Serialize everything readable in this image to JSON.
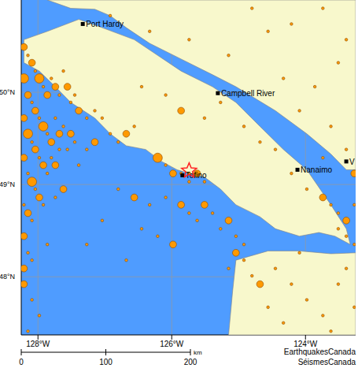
{
  "chart_data": {
    "type": "scatter",
    "xlim": [
      -128.25,
      -123.25
    ],
    "ylim": [
      47.37,
      51.0
    ],
    "xticks": [
      {
        "value": -128,
        "label": "128°W"
      },
      {
        "value": -126,
        "label": "126°W"
      },
      {
        "value": -124,
        "label": "124°W"
      }
    ],
    "yticks": [
      {
        "value": 48,
        "label": "48°N"
      },
      {
        "value": 49,
        "label": "49°N"
      },
      {
        "value": 50,
        "label": "50°N"
      }
    ],
    "grid": true,
    "ocean_color": "#4f9cff",
    "land_color": "#f8f8cc",
    "land": [
      [
        [
          -128.21,
          50.57
        ],
        [
          -127.86,
          50.66
        ],
        [
          -127.39,
          50.79
        ],
        [
          -127.04,
          50.7
        ],
        [
          -126.56,
          50.57
        ],
        [
          -126.21,
          50.4
        ],
        [
          -125.86,
          50.23
        ],
        [
          -125.39,
          50.06
        ],
        [
          -125.04,
          49.89
        ],
        [
          -124.68,
          49.63
        ],
        [
          -124.33,
          49.38
        ],
        [
          -123.98,
          49.16
        ],
        [
          -123.62,
          48.78
        ],
        [
          -123.39,
          48.52
        ],
        [
          -123.33,
          48.35
        ],
        [
          -123.56,
          48.44
        ],
        [
          -123.8,
          48.48
        ],
        [
          -124.09,
          48.44
        ],
        [
          -124.45,
          48.52
        ],
        [
          -124.68,
          48.65
        ],
        [
          -125.04,
          48.78
        ],
        [
          -125.27,
          48.95
        ],
        [
          -125.51,
          49.08
        ],
        [
          -125.74,
          49.12
        ],
        [
          -125.92,
          49.16
        ],
        [
          -126.15,
          49.25
        ],
        [
          -126.39,
          49.38
        ],
        [
          -126.68,
          49.42
        ],
        [
          -126.92,
          49.55
        ],
        [
          -127.15,
          49.72
        ],
        [
          -127.51,
          49.89
        ],
        [
          -127.74,
          50.06
        ],
        [
          -127.98,
          50.23
        ],
        [
          -128.21,
          50.32
        ]
      ],
      [
        [
          -127.86,
          51.0
        ],
        [
          -123.25,
          51.0
        ],
        [
          -123.25,
          49.16
        ],
        [
          -123.39,
          49.16
        ],
        [
          -123.62,
          49.33
        ],
        [
          -123.98,
          49.55
        ],
        [
          -124.45,
          49.8
        ],
        [
          -125.04,
          50.06
        ],
        [
          -125.39,
          50.19
        ],
        [
          -125.86,
          50.36
        ],
        [
          -126.33,
          50.53
        ],
        [
          -126.68,
          50.7
        ],
        [
          -126.92,
          50.83
        ],
        [
          -127.15,
          50.9
        ],
        [
          -127.51,
          50.91
        ]
      ],
      [
        [
          -125.04,
          48.18
        ],
        [
          -124.56,
          48.28
        ],
        [
          -124.09,
          48.28
        ],
        [
          -123.62,
          48.25
        ],
        [
          -123.25,
          48.26
        ],
        [
          -123.25,
          47.37
        ],
        [
          -125.15,
          47.37
        ],
        [
          -125.09,
          47.84
        ]
      ]
    ],
    "earthquakes": {
      "color": "#ff9900",
      "points": [
        {
          "x": -128.21,
          "y": 50.49,
          "size": 2
        },
        {
          "x": -128.15,
          "y": 50.4,
          "size": 1
        },
        {
          "x": -128.09,
          "y": 50.32,
          "size": 2
        },
        {
          "x": -128.04,
          "y": 50.23,
          "size": 1
        },
        {
          "x": -127.98,
          "y": 50.15,
          "size": 3
        },
        {
          "x": -127.92,
          "y": 50.06,
          "size": 1
        },
        {
          "x": -127.86,
          "y": 49.97,
          "size": 2
        },
        {
          "x": -127.8,
          "y": 50.15,
          "size": 1
        },
        {
          "x": -127.74,
          "y": 50.06,
          "size": 2
        },
        {
          "x": -127.68,
          "y": 49.97,
          "size": 1
        },
        {
          "x": -127.62,
          "y": 50.23,
          "size": 1
        },
        {
          "x": -127.56,
          "y": 50.06,
          "size": 2
        },
        {
          "x": -127.51,
          "y": 49.89,
          "size": 1
        },
        {
          "x": -127.45,
          "y": 49.97,
          "size": 1
        },
        {
          "x": -127.39,
          "y": 49.8,
          "size": 2
        },
        {
          "x": -127.27,
          "y": 49.72,
          "size": 1
        },
        {
          "x": -127.15,
          "y": 49.8,
          "size": 1
        },
        {
          "x": -127.04,
          "y": 49.72,
          "size": 1
        },
        {
          "x": -128.21,
          "y": 50.15,
          "size": 3
        },
        {
          "x": -128.15,
          "y": 49.97,
          "size": 2
        },
        {
          "x": -128.09,
          "y": 49.89,
          "size": 1
        },
        {
          "x": -128.04,
          "y": 49.8,
          "size": 2
        },
        {
          "x": -127.98,
          "y": 49.72,
          "size": 1
        },
        {
          "x": -127.92,
          "y": 49.63,
          "size": 3
        },
        {
          "x": -127.86,
          "y": 49.55,
          "size": 1
        },
        {
          "x": -127.8,
          "y": 49.46,
          "size": 2
        },
        {
          "x": -127.74,
          "y": 49.72,
          "size": 1
        },
        {
          "x": -127.68,
          "y": 49.55,
          "size": 2
        },
        {
          "x": -127.62,
          "y": 49.63,
          "size": 1
        },
        {
          "x": -127.56,
          "y": 49.38,
          "size": 1
        },
        {
          "x": -127.51,
          "y": 49.55,
          "size": 2
        },
        {
          "x": -127.45,
          "y": 49.46,
          "size": 1
        },
        {
          "x": -128.21,
          "y": 49.72,
          "size": 2
        },
        {
          "x": -128.15,
          "y": 49.55,
          "size": 3
        },
        {
          "x": -128.09,
          "y": 49.46,
          "size": 1
        },
        {
          "x": -128.04,
          "y": 49.38,
          "size": 2
        },
        {
          "x": -127.98,
          "y": 49.29,
          "size": 1
        },
        {
          "x": -127.92,
          "y": 49.21,
          "size": 2
        },
        {
          "x": -127.86,
          "y": 49.12,
          "size": 1
        },
        {
          "x": -127.8,
          "y": 49.29,
          "size": 1
        },
        {
          "x": -127.74,
          "y": 49.21,
          "size": 2
        },
        {
          "x": -127.68,
          "y": 49.38,
          "size": 1
        },
        {
          "x": -128.21,
          "y": 49.29,
          "size": 2
        },
        {
          "x": -128.15,
          "y": 49.12,
          "size": 1
        },
        {
          "x": -128.09,
          "y": 49.03,
          "size": 3
        },
        {
          "x": -128.04,
          "y": 48.95,
          "size": 1
        },
        {
          "x": -127.98,
          "y": 48.86,
          "size": 2
        },
        {
          "x": -128.21,
          "y": 48.78,
          "size": 1
        },
        {
          "x": -128.15,
          "y": 48.69,
          "size": 2
        },
        {
          "x": -128.09,
          "y": 48.61,
          "size": 1
        },
        {
          "x": -128.21,
          "y": 48.44,
          "size": 2
        },
        {
          "x": -128.15,
          "y": 48.26,
          "size": 1
        },
        {
          "x": -128.21,
          "y": 48.09,
          "size": 2
        },
        {
          "x": -128.09,
          "y": 48.18,
          "size": 1
        },
        {
          "x": -127.92,
          "y": 48.78,
          "size": 1
        },
        {
          "x": -127.74,
          "y": 48.86,
          "size": 1
        },
        {
          "x": -127.62,
          "y": 48.95,
          "size": 2
        },
        {
          "x": -127.39,
          "y": 49.21,
          "size": 1
        },
        {
          "x": -127.27,
          "y": 49.38,
          "size": 1
        },
        {
          "x": -127.15,
          "y": 49.46,
          "size": 2
        },
        {
          "x": -126.92,
          "y": 49.55,
          "size": 1
        },
        {
          "x": -126.8,
          "y": 49.46,
          "size": 1
        },
        {
          "x": -126.68,
          "y": 49.55,
          "size": 2
        },
        {
          "x": -126.56,
          "y": 49.63,
          "size": 1
        },
        {
          "x": -126.21,
          "y": 49.29,
          "size": 3
        },
        {
          "x": -126.09,
          "y": 49.21,
          "size": 1
        },
        {
          "x": -125.98,
          "y": 49.12,
          "size": 2
        },
        {
          "x": -125.86,
          "y": 49.12,
          "size": 1
        },
        {
          "x": -125.74,
          "y": 49.03,
          "size": 1
        },
        {
          "x": -125.62,
          "y": 49.12,
          "size": 2
        },
        {
          "x": -125.51,
          "y": 49.03,
          "size": 1
        },
        {
          "x": -125.74,
          "y": 49.12,
          "size": 1
        },
        {
          "x": -126.8,
          "y": 48.95,
          "size": 1
        },
        {
          "x": -126.56,
          "y": 48.86,
          "size": 2
        },
        {
          "x": -126.33,
          "y": 48.78,
          "size": 1
        },
        {
          "x": -126.09,
          "y": 48.86,
          "size": 1
        },
        {
          "x": -125.86,
          "y": 48.78,
          "size": 2
        },
        {
          "x": -125.74,
          "y": 48.69,
          "size": 1
        },
        {
          "x": -125.62,
          "y": 48.61,
          "size": 1
        },
        {
          "x": -125.51,
          "y": 48.78,
          "size": 2
        },
        {
          "x": -125.39,
          "y": 48.69,
          "size": 1
        },
        {
          "x": -125.27,
          "y": 48.52,
          "size": 1
        },
        {
          "x": -125.15,
          "y": 48.61,
          "size": 2
        },
        {
          "x": -125.04,
          "y": 48.44,
          "size": 1
        },
        {
          "x": -124.92,
          "y": 48.35,
          "size": 1
        },
        {
          "x": -125.04,
          "y": 48.26,
          "size": 2
        },
        {
          "x": -124.92,
          "y": 48.18,
          "size": 1
        },
        {
          "x": -125.15,
          "y": 48.09,
          "size": 1
        },
        {
          "x": -124.8,
          "y": 48.01,
          "size": 1
        },
        {
          "x": -124.68,
          "y": 47.92,
          "size": 2
        },
        {
          "x": -126.45,
          "y": 48.52,
          "size": 1
        },
        {
          "x": -126.21,
          "y": 48.44,
          "size": 1
        },
        {
          "x": -125.98,
          "y": 48.35,
          "size": 2
        },
        {
          "x": -126.68,
          "y": 48.18,
          "size": 1
        },
        {
          "x": -127.04,
          "y": 48.61,
          "size": 1
        },
        {
          "x": -127.27,
          "y": 48.35,
          "size": 1
        },
        {
          "x": -126.45,
          "y": 50.06,
          "size": 1
        },
        {
          "x": -126.09,
          "y": 49.97,
          "size": 1
        },
        {
          "x": -125.86,
          "y": 49.8,
          "size": 2
        },
        {
          "x": -125.51,
          "y": 49.72,
          "size": 1
        },
        {
          "x": -125.27,
          "y": 49.89,
          "size": 1
        },
        {
          "x": -124.92,
          "y": 49.63,
          "size": 1
        },
        {
          "x": -124.68,
          "y": 49.46,
          "size": 1
        },
        {
          "x": -124.45,
          "y": 49.38,
          "size": 1
        },
        {
          "x": -124.21,
          "y": 49.12,
          "size": 1
        },
        {
          "x": -123.98,
          "y": 48.95,
          "size": 1
        },
        {
          "x": -123.74,
          "y": 48.86,
          "size": 2
        },
        {
          "x": -123.62,
          "y": 48.78,
          "size": 1
        },
        {
          "x": -123.51,
          "y": 48.69,
          "size": 1
        },
        {
          "x": -123.39,
          "y": 48.61,
          "size": 2
        },
        {
          "x": -123.39,
          "y": 48.44,
          "size": 1
        },
        {
          "x": -123.51,
          "y": 48.52,
          "size": 1
        },
        {
          "x": -123.27,
          "y": 48.35,
          "size": 1
        },
        {
          "x": -123.27,
          "y": 48.78,
          "size": 1
        },
        {
          "x": -126.92,
          "y": 50.83,
          "size": 1
        },
        {
          "x": -126.33,
          "y": 50.66,
          "size": 1
        },
        {
          "x": -125.74,
          "y": 50.57,
          "size": 1
        },
        {
          "x": -125.15,
          "y": 50.4,
          "size": 1
        },
        {
          "x": -124.8,
          "y": 50.91,
          "size": 1
        },
        {
          "x": -124.56,
          "y": 50.66,
          "size": 1
        },
        {
          "x": -124.21,
          "y": 50.74,
          "size": 1
        },
        {
          "x": -123.74,
          "y": 50.91,
          "size": 1
        },
        {
          "x": -123.39,
          "y": 50.57,
          "size": 1
        },
        {
          "x": -123.51,
          "y": 50.32,
          "size": 1
        },
        {
          "x": -123.86,
          "y": 50.06,
          "size": 1
        },
        {
          "x": -124.09,
          "y": 49.8,
          "size": 1
        },
        {
          "x": -123.62,
          "y": 49.63,
          "size": 1
        },
        {
          "x": -123.39,
          "y": 49.38,
          "size": 1
        },
        {
          "x": -123.27,
          "y": 49.12,
          "size": 2
        },
        {
          "x": -123.74,
          "y": 49.29,
          "size": 1
        },
        {
          "x": -124.33,
          "y": 50.15,
          "size": 1
        },
        {
          "x": -124.45,
          "y": 48.09,
          "size": 1
        },
        {
          "x": -124.21,
          "y": 47.92,
          "size": 1
        },
        {
          "x": -123.98,
          "y": 47.75,
          "size": 1
        },
        {
          "x": -123.74,
          "y": 47.58,
          "size": 1
        },
        {
          "x": -123.51,
          "y": 47.92,
          "size": 1
        },
        {
          "x": -123.39,
          "y": 48.09,
          "size": 1
        },
        {
          "x": -124.09,
          "y": 48.26,
          "size": 1
        },
        {
          "x": -124.56,
          "y": 47.67,
          "size": 1
        },
        {
          "x": -124.33,
          "y": 47.5,
          "size": 1
        },
        {
          "x": -123.62,
          "y": 47.41,
          "size": 1
        },
        {
          "x": -123.27,
          "y": 47.67,
          "size": 1
        },
        {
          "x": -128.21,
          "y": 47.92,
          "size": 2
        },
        {
          "x": -128.09,
          "y": 47.75,
          "size": 1
        },
        {
          "x": -127.98,
          "y": 47.58,
          "size": 1
        },
        {
          "x": -128.15,
          "y": 47.41,
          "size": 1
        },
        {
          "x": -127.86,
          "y": 48.35,
          "size": 1
        }
      ]
    },
    "epicenter": {
      "x": -125.74,
      "y": 49.15,
      "marker": "star",
      "color": "#ff2020"
    },
    "places": [
      {
        "label": "Port Hardy",
        "x": -127.33,
        "y": 50.74
      },
      {
        "label": "Campbell River",
        "x": -125.31,
        "y": 49.99
      },
      {
        "label": "Nanaimo",
        "x": -124.12,
        "y": 49.16
      },
      {
        "label": "Tofino",
        "x": -125.84,
        "y": 49.1
      },
      {
        "label": "V",
        "x": -123.39,
        "y": 49.25
      }
    ],
    "scale_bar": {
      "ticks": [
        0,
        100,
        200
      ],
      "unit": "km"
    },
    "credits": [
      "EarthquakesCanada",
      "SéismesCanada"
    ]
  }
}
